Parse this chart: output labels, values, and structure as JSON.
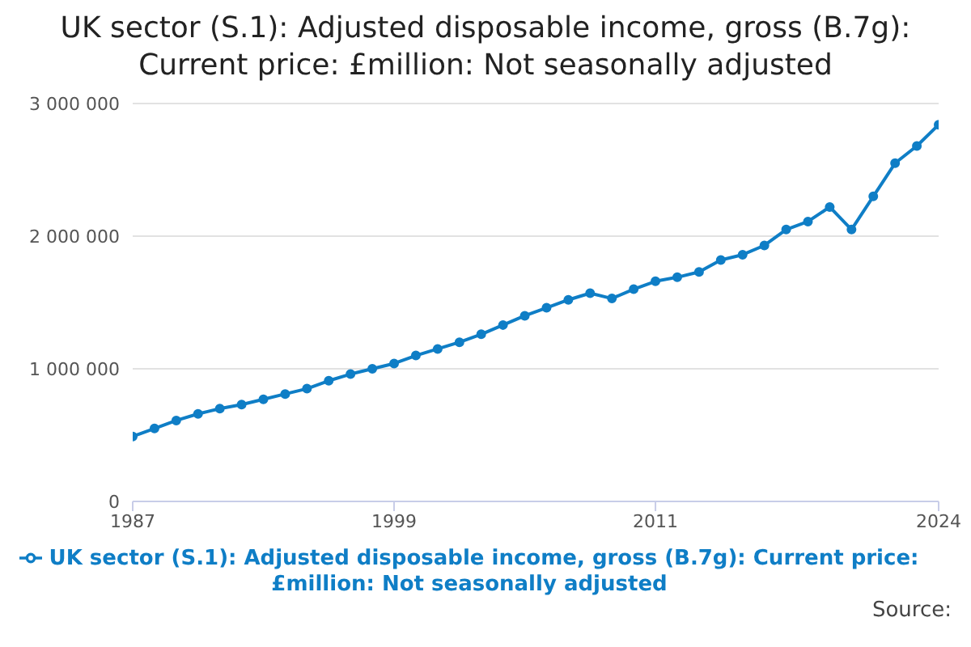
{
  "chart_data": {
    "type": "line",
    "title": "UK sector (S.1): Adjusted disposable income, gross (B.7g): Current price: £million: Not seasonally adjusted",
    "x": [
      1987,
      1988,
      1989,
      1990,
      1991,
      1992,
      1993,
      1994,
      1995,
      1996,
      1997,
      1998,
      1999,
      2000,
      2001,
      2002,
      2003,
      2004,
      2005,
      2006,
      2007,
      2008,
      2009,
      2010,
      2011,
      2012,
      2013,
      2014,
      2015,
      2016,
      2017,
      2018,
      2019,
      2020,
      2021,
      2022,
      2023,
      2024
    ],
    "series": [
      {
        "name": "UK sector (S.1): Adjusted disposable income, gross (B.7g): Current price: £million: Not seasonally adjusted",
        "color": "#0f7ec6",
        "values": [
          490000,
          550000,
          610000,
          660000,
          700000,
          730000,
          770000,
          810000,
          850000,
          910000,
          960000,
          1000000,
          1040000,
          1100000,
          1150000,
          1200000,
          1260000,
          1330000,
          1400000,
          1460000,
          1520000,
          1570000,
          1530000,
          1600000,
          1660000,
          1690000,
          1730000,
          1820000,
          1860000,
          1930000,
          2050000,
          2110000,
          2220000,
          2050000,
          2300000,
          2550000,
          2680000,
          2840000
        ]
      }
    ],
    "xlim": [
      1987,
      2024
    ],
    "xticks": [
      1987,
      1999,
      2011,
      2024
    ],
    "ylim": [
      0,
      3000000
    ],
    "yticks": [
      0,
      {
        "value": 1000000,
        "label": "1 000 000"
      },
      {
        "value": 2000000,
        "label": "2 000 000"
      },
      {
        "value": 3000000,
        "label": "3 000 000"
      }
    ],
    "grid": "y",
    "legend": "bottom",
    "marker": "circle",
    "line_style": "solid",
    "annotations": [
      "Source:"
    ]
  }
}
